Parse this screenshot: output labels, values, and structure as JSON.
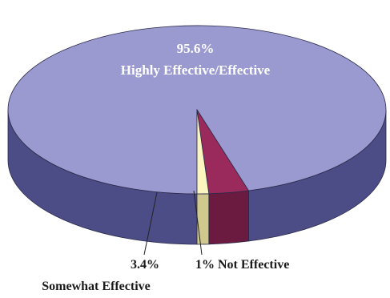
{
  "chart_data": {
    "type": "pie",
    "style": "3d",
    "title": "",
    "slices": [
      {
        "label": "Highly Effective/Effective",
        "value": 95.6,
        "value_text": "95.6%",
        "color": "#9a9ad0",
        "side_color": "#4c4d86"
      },
      {
        "label": "Somewhat Effective",
        "value": 3.4,
        "value_text": "3.4%",
        "color": "#9b2a5c",
        "side_color": "#6a1b3f"
      },
      {
        "label": "Not Effective",
        "value": 1.0,
        "value_text": "1% Not Effective",
        "color": "#fbf6c0",
        "side_color": "#cfc98e"
      }
    ],
    "legend": "none"
  }
}
